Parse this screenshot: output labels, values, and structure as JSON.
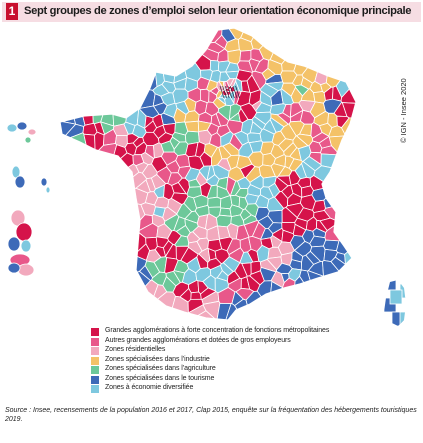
{
  "figure": {
    "badge": "1",
    "title": "Sept groupes de zones d’emploi selon leur orientation économique principale",
    "copyright": "© IGN - Insee 2020",
    "source": "Source : Insee, recensements de la population 2016 et 2017, Clap 2015, enquête sur la fréquentation des hébergements touristiques 2019."
  },
  "legend": {
    "items": [
      {
        "label": "Grandes agglomérations à forte concentration de fonctions métropolitaines",
        "color": "#d5134a"
      },
      {
        "label": "Autres grandes agglomérations et dotées de gros employeurs",
        "color": "#e8588a"
      },
      {
        "label": "Zones résidentielles",
        "color": "#f2a9bd"
      },
      {
        "label": "Zones spécialisées dans l’industrie",
        "color": "#f4c268"
      },
      {
        "label": "Zones spécialisées dans l’agriculture",
        "color": "#6dc89a"
      },
      {
        "label": "Zones spécialisées dans le tourisme",
        "color": "#3d6ab8"
      },
      {
        "label": "Zones à économie diversifiée",
        "color": "#7ec8df"
      }
    ]
  },
  "map": {
    "border_color": "#ffffff",
    "paris_hatch_color": "#1a1a2e"
  }
}
